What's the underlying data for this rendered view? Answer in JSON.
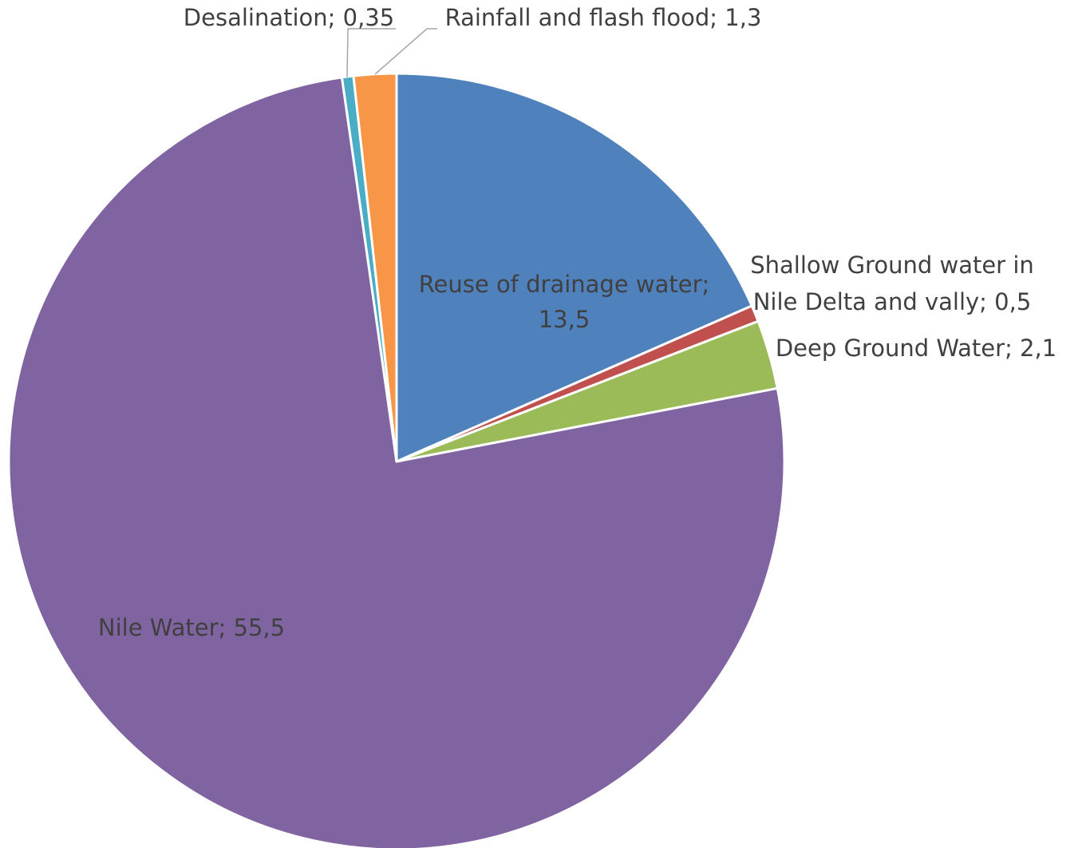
{
  "chart_data": {
    "type": "pie",
    "title": "",
    "legend": "none",
    "labels_show": "category; value",
    "slices": [
      {
        "name": "Reuse of drainage water",
        "value": 13.5,
        "label_lines": [
          "Reuse of drainage water;",
          "13,5"
        ],
        "color": "#4F81BD"
      },
      {
        "name": "Shallow Ground water in Nile Delta and vally",
        "value": 0.5,
        "label_lines": [
          "Shallow Ground water in",
          "Nile Delta and vally; 0,5"
        ],
        "color": "#C0504D"
      },
      {
        "name": "Deep Ground Water",
        "value": 2.1,
        "label_lines": [
          "Deep Ground Water; 2,1"
        ],
        "color": "#9BBB59"
      },
      {
        "name": "Nile Water",
        "value": 55.5,
        "label_lines": [
          "Nile Water; 55,5"
        ],
        "color": "#8064A2"
      },
      {
        "name": "Desalination",
        "value": 0.35,
        "label_lines": [
          "Desalination; 0,35"
        ],
        "color": "#4BACC6"
      },
      {
        "name": "Rainfall and flash flood",
        "value": 1.3,
        "label_lines": [
          "Rainfall and flash flood; 1,3"
        ],
        "color": "#F79646"
      }
    ]
  }
}
